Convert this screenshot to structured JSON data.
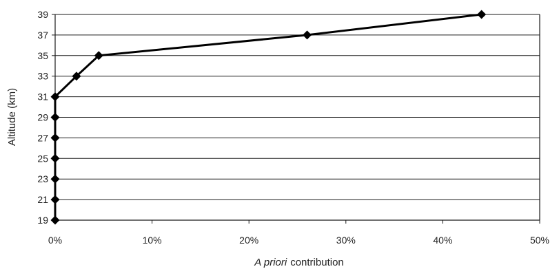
{
  "chart_data": {
    "type": "line",
    "title": "",
    "xlabel_italic": "A priori",
    "xlabel_rest": "contribution",
    "ylabel": "Altitude (km)",
    "xlim": [
      0,
      50
    ],
    "ylim": [
      19,
      39
    ],
    "x_ticks": [
      0,
      10,
      20,
      30,
      40,
      50
    ],
    "x_tick_labels": [
      "0%",
      "10%",
      "20%",
      "30%",
      "40%",
      "50%"
    ],
    "y_ticks": [
      19,
      21,
      23,
      25,
      27,
      29,
      31,
      33,
      35,
      37,
      39
    ],
    "y_tick_labels": [
      "19",
      "21",
      "23",
      "25",
      "27",
      "29",
      "31",
      "33",
      "35",
      "37",
      "39"
    ],
    "grid": "horizontal",
    "legend": "none",
    "series": [
      {
        "color": "#000000",
        "marker": "diamond",
        "points": [
          {
            "x": 0,
            "y": 19
          },
          {
            "x": 0,
            "y": 21
          },
          {
            "x": 0,
            "y": 23
          },
          {
            "x": 0,
            "y": 25
          },
          {
            "x": 0,
            "y": 27
          },
          {
            "x": 0,
            "y": 29
          },
          {
            "x": 0,
            "y": 31
          },
          {
            "x": 2.2,
            "y": 33
          },
          {
            "x": 4.5,
            "y": 35
          },
          {
            "x": 26,
            "y": 37
          },
          {
            "x": 44,
            "y": 39
          }
        ]
      }
    ]
  }
}
